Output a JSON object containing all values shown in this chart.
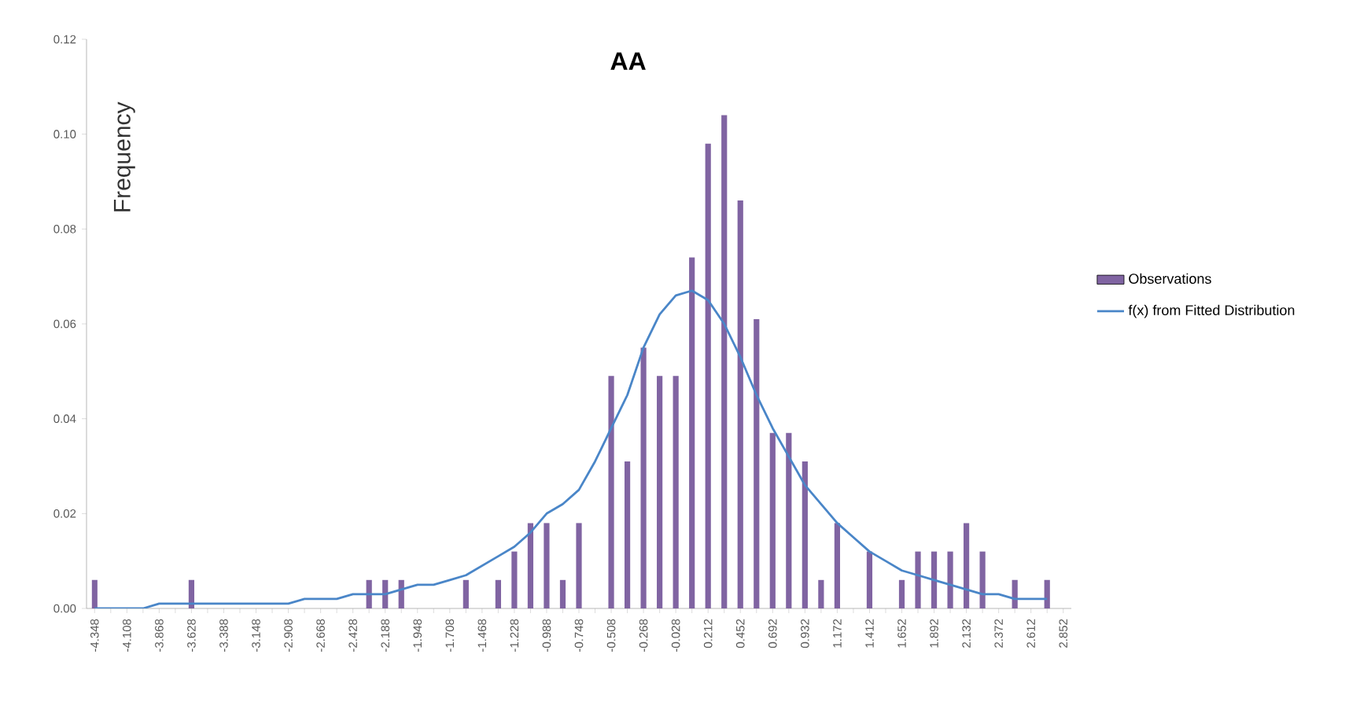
{
  "chart_data": {
    "type": "bar",
    "title": "AA",
    "ylabel": "Frequency",
    "categories": [
      "-4.348",
      null,
      "-4.108",
      null,
      "-3.868",
      null,
      "-3.628",
      null,
      "-3.388",
      null,
      "-3.148",
      null,
      "-2.908",
      null,
      "-2.668",
      null,
      "-2.428",
      null,
      "-2.188",
      null,
      "-1.948",
      null,
      "-1.708",
      null,
      "-1.468",
      null,
      "-1.228",
      null,
      "-0.988",
      null,
      "-0.748",
      null,
      "-0.508",
      null,
      "-0.268",
      null,
      "-0.028",
      null,
      "0.212",
      null,
      "0.452",
      null,
      "0.692",
      null,
      "0.932",
      null,
      "1.172",
      null,
      "1.412",
      null,
      "1.652",
      null,
      "1.892",
      null,
      "2.132",
      null,
      "2.372",
      null,
      "2.612",
      null,
      "2.852"
    ],
    "series": [
      {
        "name": "Observations",
        "color": "#8064a2",
        "values": [
          0.006,
          0,
          0,
          0,
          0,
          0,
          0.006,
          0,
          0,
          0,
          0,
          0,
          0,
          0,
          0,
          0,
          0,
          0.006,
          0.006,
          0.006,
          0,
          0,
          0,
          0.006,
          0,
          0.006,
          0.012,
          0.018,
          0.018,
          0.006,
          0.018,
          0,
          0.049,
          0.031,
          0.055,
          0.049,
          0.049,
          0.074,
          0.098,
          0.104,
          0.086,
          0.061,
          0.037,
          0.037,
          0.031,
          0.006,
          0.018,
          0,
          0.012,
          0,
          0.006,
          0.012,
          0.012,
          0.012,
          0.018,
          0.012,
          0,
          0.006,
          0,
          0.006,
          0
        ]
      },
      {
        "name": "f(x) from Fitted Distribution",
        "type": "line",
        "color": "#4a86c8",
        "values": [
          0.0,
          0.0,
          0.0,
          0.0,
          0.001,
          0.001,
          0.001,
          0.001,
          0.001,
          0.001,
          0.001,
          0.001,
          0.001,
          0.002,
          0.002,
          0.002,
          0.003,
          0.003,
          0.003,
          0.004,
          0.005,
          0.005,
          0.006,
          0.007,
          0.009,
          0.011,
          0.013,
          0.016,
          0.02,
          0.022,
          0.025,
          0.031,
          0.038,
          0.045,
          0.055,
          0.062,
          0.066,
          0.067,
          0.065,
          0.06,
          0.053,
          0.045,
          0.038,
          0.032,
          0.026,
          0.022,
          0.018,
          0.015,
          0.012,
          0.01,
          0.008,
          0.007,
          0.006,
          0.005,
          0.004,
          0.003,
          0.003,
          0.002,
          0.002,
          0.002,
          null
        ]
      }
    ],
    "ylim": [
      0,
      0.12
    ],
    "yticks": [
      {
        "value": 0,
        "label": "0.00"
      },
      {
        "value": 0.02,
        "label": "0.02"
      },
      {
        "value": 0.04,
        "label": "0.04"
      },
      {
        "value": 0.06,
        "label": "0.06"
      },
      {
        "value": 0.08,
        "label": "0.08"
      },
      {
        "value": 0.1,
        "label": "0.10"
      },
      {
        "value": 0.12,
        "label": "0.12"
      }
    ],
    "legend": "right"
  }
}
